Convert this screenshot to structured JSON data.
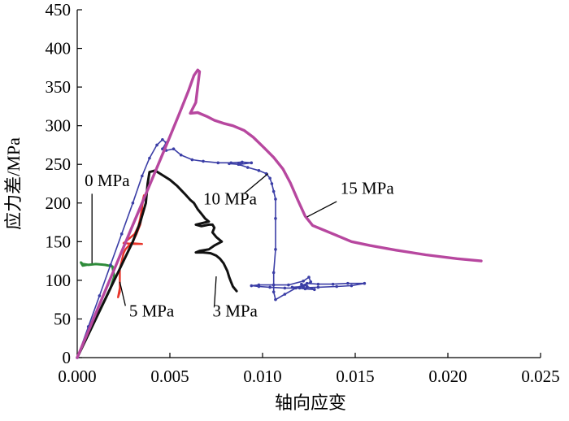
{
  "chart_data": {
    "type": "line",
    "title": "",
    "xlabel": "轴向应变",
    "ylabel": "应力差/MPa",
    "xlim": [
      0,
      0.025
    ],
    "ylim": [
      0,
      450
    ],
    "xticks": [
      "0.000",
      "0.005",
      "0.010",
      "0.015",
      "0.020",
      "0.025"
    ],
    "yticks": [
      "0",
      "50",
      "100",
      "150",
      "200",
      "250",
      "300",
      "350",
      "400",
      "450"
    ],
    "grid": false,
    "series": [
      {
        "name": "0 MPa",
        "color": "#2e8b3a",
        "label_pos": [
          0.0004,
          222
        ],
        "leader": [
          [
            0.0008,
            212
          ],
          [
            0.0008,
            122
          ]
        ],
        "points": [
          [
            0.0,
            0
          ],
          [
            0.0003,
            15
          ],
          [
            0.0006,
            30
          ],
          [
            0.0009,
            45
          ],
          [
            0.0012,
            60
          ],
          [
            0.0015,
            75
          ],
          [
            0.0018,
            90
          ],
          [
            0.002,
            105
          ],
          [
            0.0019,
            118
          ],
          [
            0.0015,
            120
          ],
          [
            0.001,
            121
          ],
          [
            0.0006,
            120
          ],
          [
            0.0003,
            121
          ],
          [
            0.0002,
            123
          ],
          [
            0.0003,
            119
          ],
          [
            0.0005,
            120
          ]
        ]
      },
      {
        "name": "5 MPa",
        "color": "#e8352a",
        "label_pos": [
          0.0028,
          53
        ],
        "leader": [
          [
            0.0026,
            67
          ],
          [
            0.0023,
            98
          ]
        ],
        "points": [
          [
            0.0,
            0
          ],
          [
            0.0004,
            20
          ],
          [
            0.0008,
            40
          ],
          [
            0.0012,
            60
          ],
          [
            0.0016,
            80
          ],
          [
            0.002,
            100
          ],
          [
            0.0024,
            120
          ],
          [
            0.0028,
            140
          ],
          [
            0.0032,
            160
          ],
          [
            0.0034,
            172
          ],
          [
            0.0035,
            185
          ],
          [
            0.0035,
            200
          ],
          [
            0.0036,
            210
          ],
          [
            0.0035,
            195
          ],
          [
            0.0034,
            180
          ],
          [
            0.0033,
            170
          ],
          [
            0.0031,
            160
          ],
          [
            0.0027,
            152
          ],
          [
            0.0025,
            148
          ],
          [
            0.0031,
            147
          ],
          [
            0.0035,
            147
          ],
          [
            0.0029,
            148
          ],
          [
            0.0026,
            140
          ],
          [
            0.0025,
            135
          ],
          [
            0.0024,
            125
          ],
          [
            0.0023,
            115
          ],
          [
            0.0023,
            105
          ],
          [
            0.0023,
            95
          ],
          [
            0.0023,
            85
          ],
          [
            0.0022,
            78
          ],
          [
            0.0023,
            90
          ]
        ]
      },
      {
        "name": "3 MPa",
        "color": "#111111",
        "label_pos": [
          0.0073,
          53
        ],
        "leader": [
          [
            0.0074,
            67
          ],
          [
            0.0075,
            105
          ]
        ],
        "points": [
          [
            0.0,
            0
          ],
          [
            0.0006,
            30
          ],
          [
            0.0012,
            60
          ],
          [
            0.0018,
            90
          ],
          [
            0.0024,
            120
          ],
          [
            0.003,
            150
          ],
          [
            0.0034,
            175
          ],
          [
            0.0037,
            200
          ],
          [
            0.0038,
            225
          ],
          [
            0.0039,
            240
          ],
          [
            0.0042,
            242
          ],
          [
            0.0046,
            236
          ],
          [
            0.005,
            230
          ],
          [
            0.0054,
            222
          ],
          [
            0.0058,
            212
          ],
          [
            0.0061,
            204
          ],
          [
            0.0063,
            200
          ],
          [
            0.0065,
            192
          ],
          [
            0.0067,
            186
          ],
          [
            0.0069,
            180
          ],
          [
            0.0071,
            176
          ],
          [
            0.0064,
            172
          ],
          [
            0.0067,
            170
          ],
          [
            0.0071,
            172
          ],
          [
            0.0073,
            172
          ],
          [
            0.0074,
            168
          ],
          [
            0.0073,
            162
          ],
          [
            0.0075,
            156
          ],
          [
            0.0078,
            150
          ],
          [
            0.0074,
            145
          ],
          [
            0.0071,
            140
          ],
          [
            0.0066,
            138
          ],
          [
            0.0064,
            136
          ],
          [
            0.0068,
            136
          ],
          [
            0.0072,
            135
          ],
          [
            0.0075,
            132
          ],
          [
            0.0077,
            128
          ],
          [
            0.0079,
            122
          ],
          [
            0.0081,
            112
          ],
          [
            0.0082,
            104
          ],
          [
            0.0083,
            98
          ],
          [
            0.0084,
            92
          ],
          [
            0.0086,
            86
          ]
        ]
      },
      {
        "name": "10 MPa",
        "color": "#3b3ea6",
        "label_pos": [
          0.0068,
          198
        ],
        "leader": [
          [
            0.009,
            212
          ],
          [
            0.0103,
            238
          ]
        ],
        "points": [
          [
            0.0,
            0
          ],
          [
            0.0006,
            40
          ],
          [
            0.0012,
            80
          ],
          [
            0.0018,
            120
          ],
          [
            0.0024,
            160
          ],
          [
            0.003,
            200
          ],
          [
            0.0035,
            235
          ],
          [
            0.0039,
            258
          ],
          [
            0.0043,
            275
          ],
          [
            0.0046,
            282
          ],
          [
            0.0048,
            278
          ],
          [
            0.0046,
            270
          ],
          [
            0.0048,
            268
          ],
          [
            0.0052,
            270
          ],
          [
            0.0056,
            262
          ],
          [
            0.0062,
            256
          ],
          [
            0.0068,
            254
          ],
          [
            0.0076,
            252
          ],
          [
            0.0083,
            252
          ],
          [
            0.0089,
            253
          ],
          [
            0.0094,
            252
          ],
          [
            0.0088,
            250
          ],
          [
            0.0082,
            251
          ],
          [
            0.0087,
            250
          ],
          [
            0.0092,
            246
          ],
          [
            0.0098,
            242
          ],
          [
            0.0102,
            238
          ],
          [
            0.0104,
            232
          ],
          [
            0.0105,
            225
          ],
          [
            0.0106,
            215
          ],
          [
            0.0107,
            205
          ],
          [
            0.0107,
            180
          ],
          [
            0.0107,
            140
          ],
          [
            0.0106,
            110
          ],
          [
            0.0106,
            85
          ],
          [
            0.0107,
            75
          ],
          [
            0.0112,
            82
          ],
          [
            0.0118,
            90
          ],
          [
            0.0124,
            96
          ],
          [
            0.013,
            95
          ],
          [
            0.0138,
            95
          ],
          [
            0.0146,
            96
          ],
          [
            0.0155,
            96
          ],
          [
            0.0148,
            93
          ],
          [
            0.014,
            92
          ],
          [
            0.013,
            91
          ],
          [
            0.012,
            90
          ],
          [
            0.0112,
            90
          ],
          [
            0.0104,
            91
          ],
          [
            0.0098,
            92
          ],
          [
            0.0094,
            93
          ],
          [
            0.0098,
            94
          ],
          [
            0.0106,
            94
          ],
          [
            0.0114,
            94
          ],
          [
            0.0122,
            99
          ],
          [
            0.0125,
            104
          ],
          [
            0.0126,
            98
          ],
          [
            0.0122,
            92
          ],
          [
            0.0116,
            91
          ],
          [
            0.0123,
            89
          ],
          [
            0.0128,
            88
          ],
          [
            0.0124,
            92
          ],
          [
            0.0121,
            95
          ]
        ]
      },
      {
        "name": "15 MPa",
        "color": "#b7479f",
        "label_pos": [
          0.0142,
          212
        ],
        "leader": [
          [
            0.014,
            202
          ],
          [
            0.0124,
            182
          ]
        ],
        "points": [
          [
            0.0,
            0
          ],
          [
            0.0007,
            40
          ],
          [
            0.0014,
            80
          ],
          [
            0.0021,
            120
          ],
          [
            0.0028,
            160
          ],
          [
            0.0035,
            200
          ],
          [
            0.0042,
            240
          ],
          [
            0.0049,
            280
          ],
          [
            0.0055,
            315
          ],
          [
            0.006,
            345
          ],
          [
            0.0063,
            365
          ],
          [
            0.0065,
            372
          ],
          [
            0.0066,
            370
          ],
          [
            0.0065,
            350
          ],
          [
            0.0064,
            330
          ],
          [
            0.0061,
            316
          ],
          [
            0.0065,
            317
          ],
          [
            0.007,
            312
          ],
          [
            0.0074,
            307
          ],
          [
            0.0079,
            303
          ],
          [
            0.0084,
            300
          ],
          [
            0.009,
            294
          ],
          [
            0.0095,
            285
          ],
          [
            0.0101,
            271
          ],
          [
            0.0106,
            259
          ],
          [
            0.0111,
            244
          ],
          [
            0.0115,
            226
          ],
          [
            0.0119,
            204
          ],
          [
            0.0123,
            183
          ],
          [
            0.0127,
            171
          ],
          [
            0.0133,
            165
          ],
          [
            0.014,
            158
          ],
          [
            0.0148,
            150
          ],
          [
            0.0158,
            145
          ],
          [
            0.0172,
            139
          ],
          [
            0.0188,
            133
          ],
          [
            0.0205,
            128
          ],
          [
            0.0218,
            125
          ]
        ]
      }
    ]
  }
}
